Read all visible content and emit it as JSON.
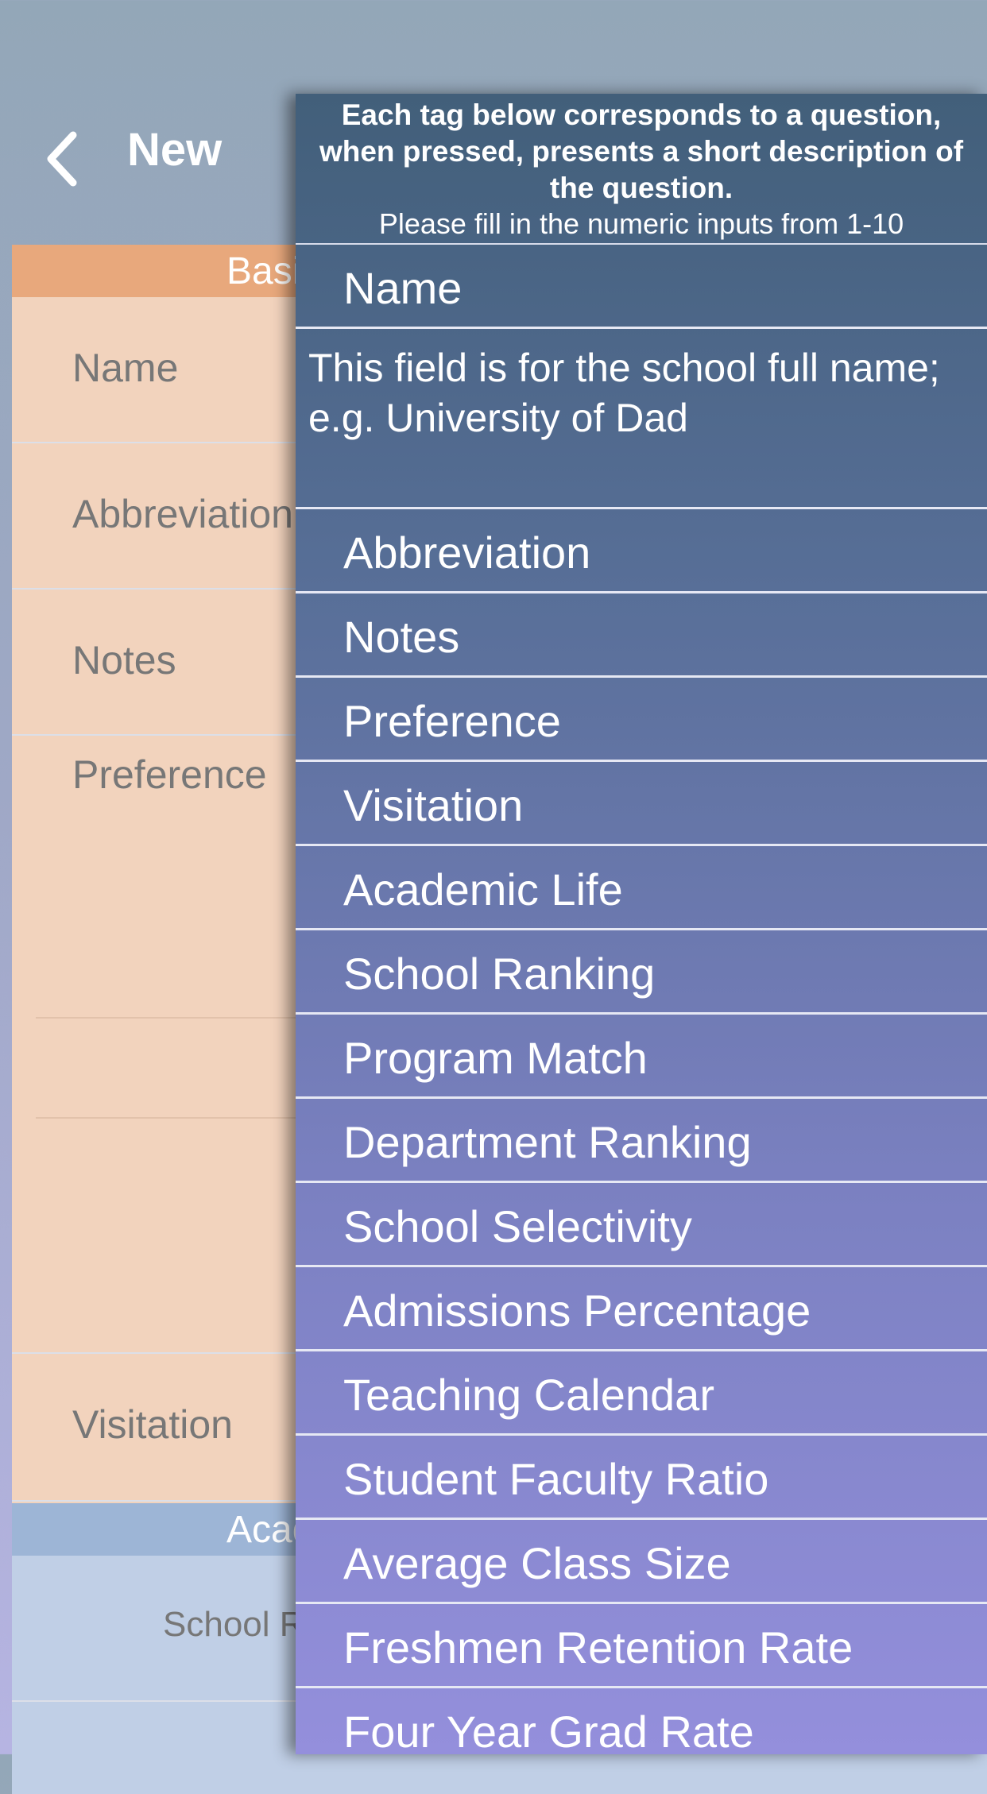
{
  "nav": {
    "back_icon": "chevron-left-icon",
    "title": "New"
  },
  "form": {
    "basic_header": "Basic",
    "academic_header": "Academic",
    "rows": {
      "name": "Name",
      "abbreviation": "Abbreviation",
      "notes": "Notes",
      "preference": "Preference",
      "visitation": "Visitation",
      "school_ranking": "School Ranking"
    }
  },
  "panel": {
    "instructions": "Each tag below corresponds to a question, when pressed, presents a short description of the question.",
    "subinstructions": "Please fill in the numeric inputs from 1-10",
    "expanded_tag": "Name",
    "expanded_description": "This field is for the school full name; e.g. University of Dad",
    "tags": [
      "Abbreviation",
      "Notes",
      "Preference",
      "Visitation",
      "Academic Life",
      "School Ranking",
      "Program Match",
      "Department Ranking",
      "School Selectivity",
      "Admissions Percentage",
      "Teaching Calendar",
      "Student Faculty Ratio",
      "Average Class Size",
      "Freshmen Retention Rate",
      "Four Year Grad Rate"
    ]
  }
}
